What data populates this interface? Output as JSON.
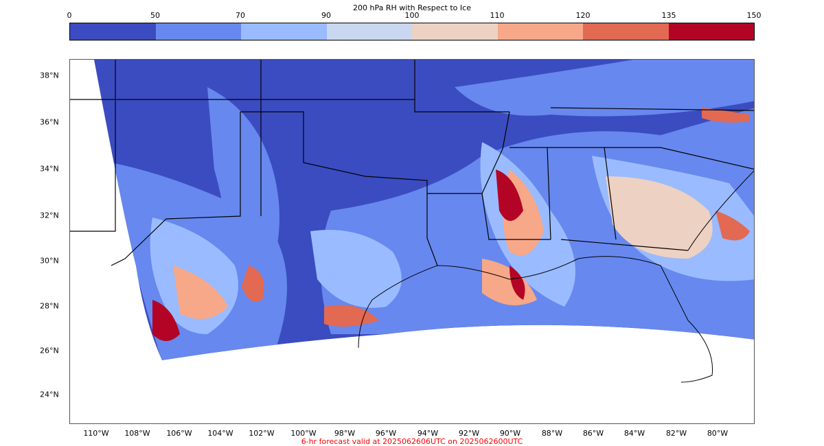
{
  "title": "200 hPa RH with Respect to Ice",
  "colorbar": {
    "ticks": [
      "0",
      "50",
      "70",
      "90",
      "100",
      "110",
      "120",
      "135",
      "150"
    ],
    "colors": [
      "#3b4cc0",
      "#6788ee",
      "#9abbff",
      "#c9d7f0",
      "#edd1c2",
      "#f7a889",
      "#e26952",
      "#b40426"
    ]
  },
  "lat_labels": [
    "38°N",
    "36°N",
    "34°N",
    "32°N",
    "30°N",
    "28°N",
    "26°N",
    "24°N"
  ],
  "lon_labels": [
    "110°W",
    "108°W",
    "106°W",
    "104°W",
    "102°W",
    "100°W",
    "98°W",
    "96°W",
    "94°W",
    "92°W",
    "90°W",
    "88°W",
    "86°W",
    "84°W",
    "82°W",
    "80°W"
  ],
  "footer": "6-hr forecast valid at 2025062606UTC on 2025062600UTC"
}
